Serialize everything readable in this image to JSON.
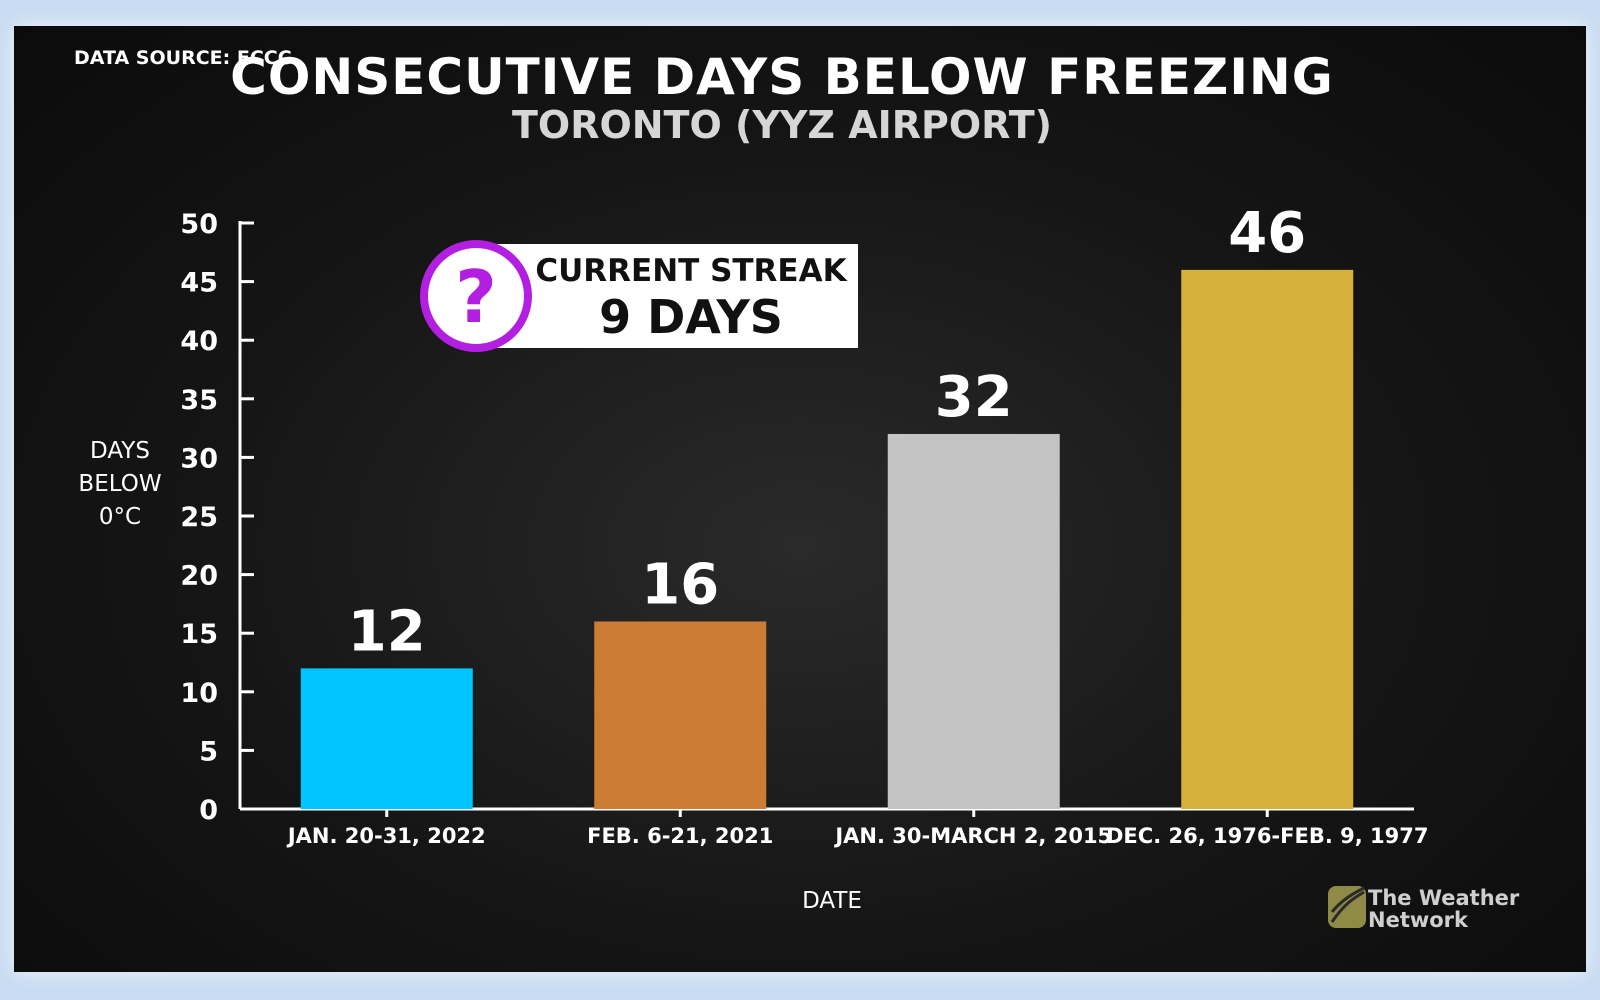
{
  "header": {
    "source": "DATA SOURCE: ECCC",
    "title": "CONSECUTIVE DAYS BELOW FREEZING",
    "subtitle": "TORONTO (YYZ AIRPORT)"
  },
  "callout": {
    "icon": "question-mark-icon",
    "line1": "CURRENT STREAK",
    "line2": "9 DAYS",
    "accent_color": "#b31fe0"
  },
  "logo": {
    "line1": "The Weather",
    "line2": "Network"
  },
  "chart_data": {
    "type": "bar",
    "categories": [
      "JAN. 20-31, 2022",
      "FEB. 6-21, 2021",
      "JAN. 30-MARCH 2, 2015",
      "DEC. 26, 1976-FEB. 9, 1977"
    ],
    "values": [
      12,
      16,
      32,
      46
    ],
    "value_labels": [
      "12",
      "16",
      "32",
      "46"
    ],
    "colors": [
      "#00c5ff",
      "#cc7d35",
      "#c3c3c3",
      "#d4b13a"
    ],
    "xlabel": "DATE",
    "ylabel_lines": [
      "DAYS",
      "BELOW",
      "0°C"
    ],
    "ylim": [
      0,
      50
    ],
    "yticks": [
      0,
      5,
      10,
      15,
      20,
      25,
      30,
      35,
      40,
      45,
      50
    ],
    "grid": false
  }
}
